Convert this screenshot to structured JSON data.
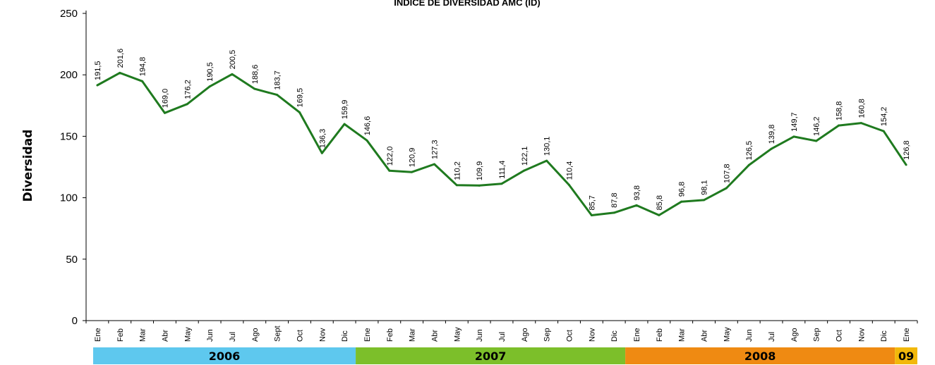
{
  "chart_data": {
    "type": "line",
    "title": "INDICE DE DIVERSIDAD AMC (ID)",
    "ylabel": "Diversidad",
    "ylim": [
      0,
      250
    ],
    "yticks": [
      "0",
      "50",
      "100",
      "150",
      "200",
      "250"
    ],
    "grid": false,
    "legend": "none",
    "line_color": "#1f7a1f",
    "categories": [
      "Ene",
      "Feb",
      "Mar",
      "Abr",
      "May",
      "Jun",
      "Jul",
      "Ago",
      "Sept",
      "Oct",
      "Nov",
      "Dic",
      "Ene",
      "Feb",
      "Mar",
      "Abr",
      "May",
      "Jun",
      "Jul",
      "Ago",
      "Sep",
      "Oct",
      "Nov",
      "Dic",
      "Ene",
      "Feb",
      "Mar",
      "Abr",
      "May",
      "Jun",
      "Jul",
      "Ago",
      "Sep",
      "Oct",
      "Nov",
      "Dic",
      "Ene"
    ],
    "values": [
      191.5,
      201.6,
      194.8,
      169.0,
      176.2,
      190.5,
      200.5,
      188.6,
      183.7,
      169.5,
      136.3,
      159.9,
      146.6,
      122.0,
      120.9,
      127.3,
      110.2,
      109.9,
      111.4,
      122.1,
      130.1,
      110.4,
      85.7,
      87.8,
      93.8,
      85.8,
      96.8,
      98.1,
      107.8,
      126.5,
      139.8,
      149.7,
      146.2,
      158.8,
      160.8,
      154.2,
      126.8
    ],
    "data_labels": [
      "191,5",
      "201,6",
      "194,8",
      "169,0",
      "176,2",
      "190,5",
      "200,5",
      "188,6",
      "183,7",
      "169,5",
      "136,3",
      "159,9",
      "146,6",
      "122,0",
      "120,9",
      "127,3",
      "110,2",
      "109,9",
      "111,4",
      "122,1",
      "130,1",
      "110,4",
      "85,7",
      "87,8",
      "93,8",
      "85,8",
      "96,8",
      "98,1",
      "107,8",
      "126,5",
      "139,8",
      "149,7",
      "146,2",
      "158,8",
      "160,8",
      "154,2",
      "126,8"
    ],
    "years": [
      {
        "label": "2006",
        "months": 12,
        "color": "#5ec8ee"
      },
      {
        "label": "2007",
        "months": 12,
        "color": "#7cbf2a"
      },
      {
        "label": "2008",
        "months": 12,
        "color": "#ef8a12"
      },
      {
        "label": "09",
        "months": 1,
        "color": "#f2b80a"
      }
    ]
  }
}
